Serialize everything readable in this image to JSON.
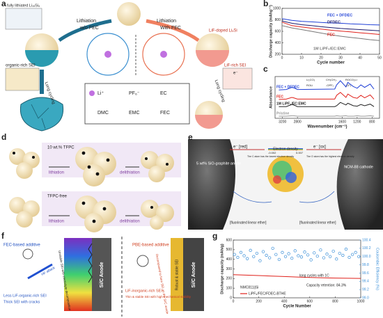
{
  "panels": {
    "a": {
      "letter": "a",
      "fully_lithiated": "fully lithiated Li₁₅Si₄",
      "lithiation_wo": "Lithiation",
      "wo_fec": "w/o FEC",
      "lithiation_with": "Lithiation",
      "with_fec": "With FEC",
      "lif_doped": "LiF-doped LiₓSi",
      "organic_sei": "organic-rich SEI",
      "lif_sei": "LiF-rich SEI",
      "long_cycling_left": "Long cycling",
      "long_cycling_right": "Long cycling",
      "electron": "e⁻",
      "legend": [
        "Li⁺",
        "PF₆⁻",
        "EC",
        "DMC",
        "EMC",
        "FEC"
      ]
    },
    "d": {
      "letter": "d",
      "additive": "10 wt.% TFPC",
      "free": "TFPC-free",
      "lithiation_top": "lithiation",
      "delithiation_top": "delithiation",
      "lithiation_bottom": "lithiation",
      "delithiation_bottom": "delithiation"
    },
    "e": {
      "letter": "e",
      "e_red": "e⁻ [red]",
      "e_ox": "e⁻ [ox]",
      "density_title": "Electron density",
      "density_min": "-0.002",
      "density_max": "0.007",
      "anode": "5 wt% SiO-graphite anode",
      "cathode": "NCM-88 cathode",
      "ether_left": "[fluorinated linear ether]",
      "ether_right": "[fluorinated linear ether]",
      "c_atom": "The C atom has the lowest electron density",
      "o_atom": "The O atom has the highest electron density"
    },
    "f": {
      "letter": "f",
      "fec_additive": "FEC-based additive",
      "hf": "HF attack",
      "unstable": "Unstable SEI with electrolyte decomposition",
      "less_lif": "Less LiF-organic-rich SEI",
      "thick": "Thick SEI with cracks",
      "anode_left": "Si/C Anode",
      "pbe": "PBE-based additive",
      "decomposed": "Decomposed to form SEI on the Si/C anode",
      "lif_inorganic": "LiF-inorganic-rich SEI",
      "thin": "Thin & stable SEI with high mechanical stability",
      "robust": "Robust & stable SEI",
      "anode_right": "Si/C Anode"
    }
  },
  "chart_data": [
    {
      "type": "line",
      "panel": "b",
      "xlabel": "Cycle number",
      "ylabel": "Discharge capacity (mAhg⁻¹)",
      "x": [
        0,
        5,
        10,
        15,
        20,
        25,
        30,
        35,
        40,
        45,
        50
      ],
      "xlim": [
        0,
        50
      ],
      "xticks": [
        0,
        10,
        20,
        30,
        40,
        50
      ],
      "ylim": [
        200,
        1000
      ],
      "yticks": [
        200,
        400,
        600,
        800,
        1000
      ],
      "note": "1M LiPF₆/EC:EMC",
      "series": [
        {
          "name": "FEC + DFDEC",
          "color": "#1f3fd6",
          "values": [
            820,
            790,
            775,
            765,
            755,
            745,
            740,
            730,
            725,
            715,
            710
          ]
        },
        {
          "name": "DFDEC",
          "color": "#1a1a6e",
          "values": [
            780,
            740,
            715,
            700,
            680,
            665,
            650,
            640,
            630,
            620,
            610
          ]
        },
        {
          "name": "FEC",
          "color": "#e0201a",
          "values": [
            760,
            700,
            675,
            655,
            640,
            620,
            605,
            590,
            575,
            560,
            545
          ]
        },
        {
          "name": "1M LiPF₆/EC:EMC",
          "color": "#777777",
          "values": [
            700,
            660,
            630,
            600,
            570,
            540,
            515,
            495,
            475,
            455,
            440
          ]
        }
      ]
    },
    {
      "type": "line",
      "panel": "c",
      "xlabel": "Wavenumber (cm⁻¹)",
      "ylabel": "Absorbance",
      "x": [
        3300,
        3100,
        2950,
        2900,
        2800,
        1800,
        1750,
        1650,
        1500,
        1450,
        1300,
        1200,
        1100,
        1000,
        850,
        750
      ],
      "xlim": [
        3400,
        600
      ],
      "xticks": [
        3200,
        2800,
        1600,
        1200,
        800
      ],
      "ylim": [
        0,
        1
      ],
      "annotations": [
        "Li₂CO₃",
        "CH₃CH₂-",
        "ROCO₂Li",
        "ROLi",
        "-OPF₂",
        "-CF₃"
      ],
      "series": [
        {
          "name": "FEC + DFDEC",
          "color": "#1f3fd6",
          "values": [
            0.68,
            0.69,
            0.74,
            0.73,
            0.69,
            0.7,
            0.8,
            0.9,
            0.75,
            0.86,
            0.76,
            0.72,
            0.8,
            0.74,
            0.82,
            0.7
          ]
        },
        {
          "name": "FEC",
          "color": "#e0201a",
          "values": [
            0.45,
            0.46,
            0.5,
            0.49,
            0.46,
            0.46,
            0.55,
            0.62,
            0.5,
            0.58,
            0.5,
            0.48,
            0.55,
            0.49,
            0.56,
            0.46
          ]
        },
        {
          "name": "1M LiPF₆/EC:EMC",
          "color": "#222222",
          "values": [
            0.28,
            0.28,
            0.33,
            0.32,
            0.28,
            0.28,
            0.3,
            0.38,
            0.32,
            0.36,
            0.3,
            0.29,
            0.33,
            0.3,
            0.34,
            0.28
          ]
        },
        {
          "name": "Pristine",
          "color": "#999999",
          "values": [
            0.05,
            0.05,
            0.06,
            0.06,
            0.05,
            0.05,
            0.06,
            0.05,
            0.06,
            0.05,
            0.05,
            0.06,
            0.05,
            0.05,
            0.06,
            0.05
          ]
        }
      ]
    },
    {
      "type": "line",
      "panel": "g",
      "xlabel": "Cycle Number",
      "ylabel": "Discharge capacity (mAh/g)",
      "y2label": "Coulombic Efficiency (%)",
      "xlim": [
        0,
        1000
      ],
      "xticks": [
        0,
        200,
        400,
        600,
        800,
        1000
      ],
      "ylim": [
        0,
        600
      ],
      "yticks": [
        0,
        100,
        200,
        300,
        400,
        500,
        600
      ],
      "y2lim": [
        99.0,
        100.4
      ],
      "y2ticks": [
        {
          "value": 99.0,
          "label": "99.0"
        },
        99.2,
        99.4,
        99.6,
        99.8,
        {
          "value": 100.0,
          "label": "100.0"
        },
        100.2,
        100.4
      ],
      "annotations": [
        "long cycles with 1C",
        "Capacity retention: 84.3%",
        "NMC811||Si"
      ],
      "series": [
        {
          "name": "LiPF₆/FEC/FDEC-BTHE",
          "type": "line",
          "color": "#e0201a",
          "x": [
            0,
            100,
            200,
            300,
            400,
            500,
            600,
            700,
            800,
            900,
            1000
          ],
          "values": [
            240,
            236,
            231,
            226,
            221,
            216,
            212,
            208,
            205,
            203,
            202
          ]
        },
        {
          "name": "Coulombic efficiency",
          "type": "scatter",
          "axis": "y2",
          "color": "#3a8fd8",
          "x": [
            10,
            35,
            60,
            85,
            110,
            135,
            160,
            185,
            210,
            235,
            260,
            285,
            310,
            335,
            360,
            385,
            410,
            435,
            460,
            485,
            510,
            535,
            560,
            585,
            610,
            635,
            660,
            685,
            710,
            735,
            760,
            785,
            810,
            835,
            860,
            885,
            910,
            935,
            960,
            985
          ],
          "values": [
            100.05,
            99.98,
            100.1,
            100.02,
            99.95,
            100.15,
            100.0,
            100.08,
            99.9,
            100.12,
            100.03,
            99.97,
            100.2,
            100.05,
            99.93,
            100.1,
            100.0,
            100.07,
            99.96,
            100.14,
            100.02,
            99.99,
            100.11,
            100.04,
            99.92,
            100.09,
            100.01,
            100.16,
            99.97,
            100.06,
            100.0,
            100.13,
            99.94,
            100.08,
            100.03,
            100.18,
            99.98,
            100.05,
            100.1,
            100.0
          ]
        }
      ]
    }
  ]
}
